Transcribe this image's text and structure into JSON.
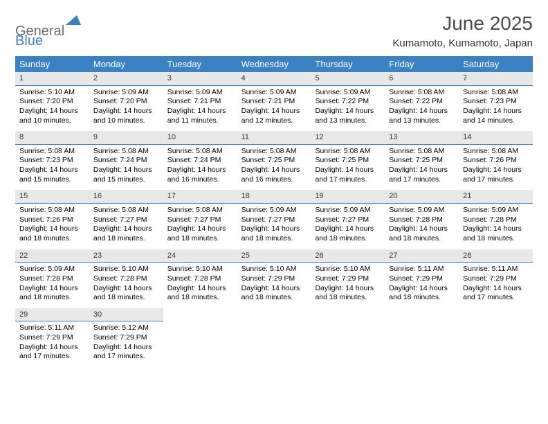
{
  "logo": {
    "word1": "General",
    "word2": "Blue"
  },
  "title": "June 2025",
  "location": "Kumamoto, Kumamoto, Japan",
  "accent_color": "#3b82c4",
  "header_text_color": "#ffffff",
  "daynum_bg": "#e8e8e8",
  "text_color": "#000000",
  "weekdays": [
    "Sunday",
    "Monday",
    "Tuesday",
    "Wednesday",
    "Thursday",
    "Friday",
    "Saturday"
  ],
  "weeks": [
    [
      {
        "n": "1",
        "sr": "Sunrise: 5:10 AM",
        "ss": "Sunset: 7:20 PM",
        "dl": "Daylight: 14 hours and 10 minutes."
      },
      {
        "n": "2",
        "sr": "Sunrise: 5:09 AM",
        "ss": "Sunset: 7:20 PM",
        "dl": "Daylight: 14 hours and 10 minutes."
      },
      {
        "n": "3",
        "sr": "Sunrise: 5:09 AM",
        "ss": "Sunset: 7:21 PM",
        "dl": "Daylight: 14 hours and 11 minutes."
      },
      {
        "n": "4",
        "sr": "Sunrise: 5:09 AM",
        "ss": "Sunset: 7:21 PM",
        "dl": "Daylight: 14 hours and 12 minutes."
      },
      {
        "n": "5",
        "sr": "Sunrise: 5:09 AM",
        "ss": "Sunset: 7:22 PM",
        "dl": "Daylight: 14 hours and 13 minutes."
      },
      {
        "n": "6",
        "sr": "Sunrise: 5:08 AM",
        "ss": "Sunset: 7:22 PM",
        "dl": "Daylight: 14 hours and 13 minutes."
      },
      {
        "n": "7",
        "sr": "Sunrise: 5:08 AM",
        "ss": "Sunset: 7:23 PM",
        "dl": "Daylight: 14 hours and 14 minutes."
      }
    ],
    [
      {
        "n": "8",
        "sr": "Sunrise: 5:08 AM",
        "ss": "Sunset: 7:23 PM",
        "dl": "Daylight: 14 hours and 15 minutes."
      },
      {
        "n": "9",
        "sr": "Sunrise: 5:08 AM",
        "ss": "Sunset: 7:24 PM",
        "dl": "Daylight: 14 hours and 15 minutes."
      },
      {
        "n": "10",
        "sr": "Sunrise: 5:08 AM",
        "ss": "Sunset: 7:24 PM",
        "dl": "Daylight: 14 hours and 16 minutes."
      },
      {
        "n": "11",
        "sr": "Sunrise: 5:08 AM",
        "ss": "Sunset: 7:25 PM",
        "dl": "Daylight: 14 hours and 16 minutes."
      },
      {
        "n": "12",
        "sr": "Sunrise: 5:08 AM",
        "ss": "Sunset: 7:25 PM",
        "dl": "Daylight: 14 hours and 17 minutes."
      },
      {
        "n": "13",
        "sr": "Sunrise: 5:08 AM",
        "ss": "Sunset: 7:25 PM",
        "dl": "Daylight: 14 hours and 17 minutes."
      },
      {
        "n": "14",
        "sr": "Sunrise: 5:08 AM",
        "ss": "Sunset: 7:26 PM",
        "dl": "Daylight: 14 hours and 17 minutes."
      }
    ],
    [
      {
        "n": "15",
        "sr": "Sunrise: 5:08 AM",
        "ss": "Sunset: 7:26 PM",
        "dl": "Daylight: 14 hours and 18 minutes."
      },
      {
        "n": "16",
        "sr": "Sunrise: 5:08 AM",
        "ss": "Sunset: 7:27 PM",
        "dl": "Daylight: 14 hours and 18 minutes."
      },
      {
        "n": "17",
        "sr": "Sunrise: 5:08 AM",
        "ss": "Sunset: 7:27 PM",
        "dl": "Daylight: 14 hours and 18 minutes."
      },
      {
        "n": "18",
        "sr": "Sunrise: 5:09 AM",
        "ss": "Sunset: 7:27 PM",
        "dl": "Daylight: 14 hours and 18 minutes."
      },
      {
        "n": "19",
        "sr": "Sunrise: 5:09 AM",
        "ss": "Sunset: 7:27 PM",
        "dl": "Daylight: 14 hours and 18 minutes."
      },
      {
        "n": "20",
        "sr": "Sunrise: 5:09 AM",
        "ss": "Sunset: 7:28 PM",
        "dl": "Daylight: 14 hours and 18 minutes."
      },
      {
        "n": "21",
        "sr": "Sunrise: 5:09 AM",
        "ss": "Sunset: 7:28 PM",
        "dl": "Daylight: 14 hours and 18 minutes."
      }
    ],
    [
      {
        "n": "22",
        "sr": "Sunrise: 5:09 AM",
        "ss": "Sunset: 7:28 PM",
        "dl": "Daylight: 14 hours and 18 minutes."
      },
      {
        "n": "23",
        "sr": "Sunrise: 5:10 AM",
        "ss": "Sunset: 7:28 PM",
        "dl": "Daylight: 14 hours and 18 minutes."
      },
      {
        "n": "24",
        "sr": "Sunrise: 5:10 AM",
        "ss": "Sunset: 7:28 PM",
        "dl": "Daylight: 14 hours and 18 minutes."
      },
      {
        "n": "25",
        "sr": "Sunrise: 5:10 AM",
        "ss": "Sunset: 7:29 PM",
        "dl": "Daylight: 14 hours and 18 minutes."
      },
      {
        "n": "26",
        "sr": "Sunrise: 5:10 AM",
        "ss": "Sunset: 7:29 PM",
        "dl": "Daylight: 14 hours and 18 minutes."
      },
      {
        "n": "27",
        "sr": "Sunrise: 5:11 AM",
        "ss": "Sunset: 7:29 PM",
        "dl": "Daylight: 14 hours and 18 minutes."
      },
      {
        "n": "28",
        "sr": "Sunrise: 5:11 AM",
        "ss": "Sunset: 7:29 PM",
        "dl": "Daylight: 14 hours and 17 minutes."
      }
    ],
    [
      {
        "n": "29",
        "sr": "Sunrise: 5:11 AM",
        "ss": "Sunset: 7:29 PM",
        "dl": "Daylight: 14 hours and 17 minutes."
      },
      {
        "n": "30",
        "sr": "Sunrise: 5:12 AM",
        "ss": "Sunset: 7:29 PM",
        "dl": "Daylight: 14 hours and 17 minutes."
      },
      null,
      null,
      null,
      null,
      null
    ]
  ]
}
